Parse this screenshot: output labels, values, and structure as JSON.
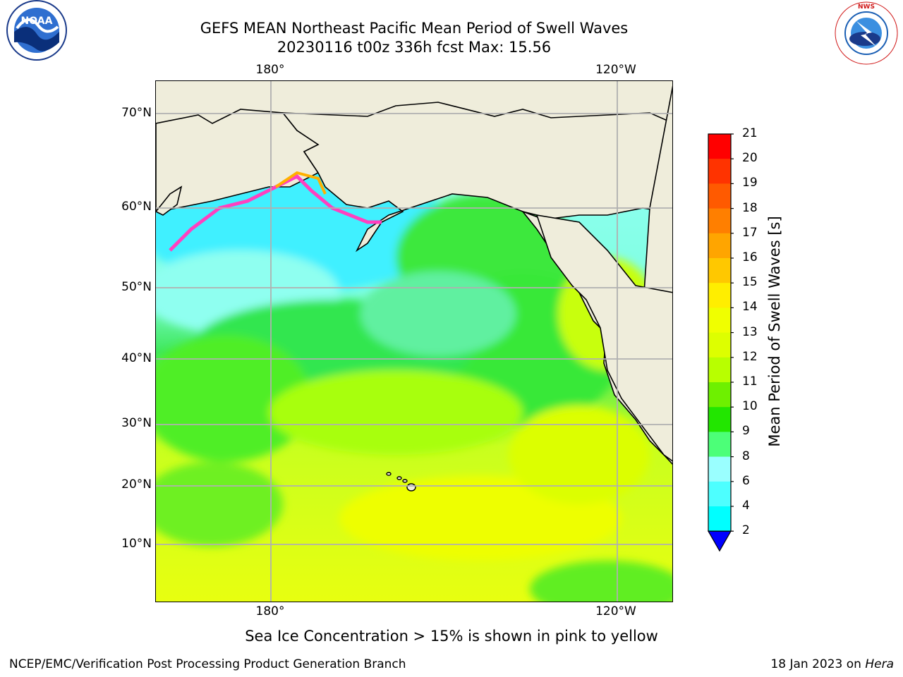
{
  "title": {
    "line1": "GEFS MEAN Northeast Pacific Mean Period of Swell Waves",
    "line2": "20230116 t00z 336h fcst   Max: 15.56"
  },
  "axes": {
    "lon_ticks": [
      "180°",
      "120°W"
    ],
    "lat_ticks": [
      "70°N",
      "60°N",
      "50°N",
      "40°N",
      "30°N",
      "20°N",
      "10°N"
    ]
  },
  "colorbar": {
    "title": "Mean Period of Swell Waves [s]",
    "ticks": [
      "21",
      "20",
      "19",
      "18",
      "17",
      "16",
      "15",
      "14",
      "13",
      "12",
      "11",
      "10",
      "9",
      "8",
      "6",
      "4",
      "2"
    ],
    "colors": [
      "#ff0000",
      "#ff3300",
      "#ff5a00",
      "#ff7f00",
      "#ffa500",
      "#ffc800",
      "#ffee00",
      "#f0ff00",
      "#ddff00",
      "#b8ff00",
      "#6ef000",
      "#22e600",
      "#4cff78",
      "#9affff",
      "#4dffff",
      "#00ffff",
      "#00e0ff",
      "#0080ff"
    ],
    "extend_color": "#0000ff"
  },
  "note": "Sea Ice Concentration > 15% is shown in pink to yellow",
  "footer": {
    "left": "NCEP/EMC/Verification Post Processing Product Generation Branch",
    "right_date": "18 Jan 2023 on ",
    "right_host": "Hera"
  },
  "logos": {
    "left_text": "NOAA",
    "right_text": "NATIONAL WEATHER SERVICE"
  }
}
